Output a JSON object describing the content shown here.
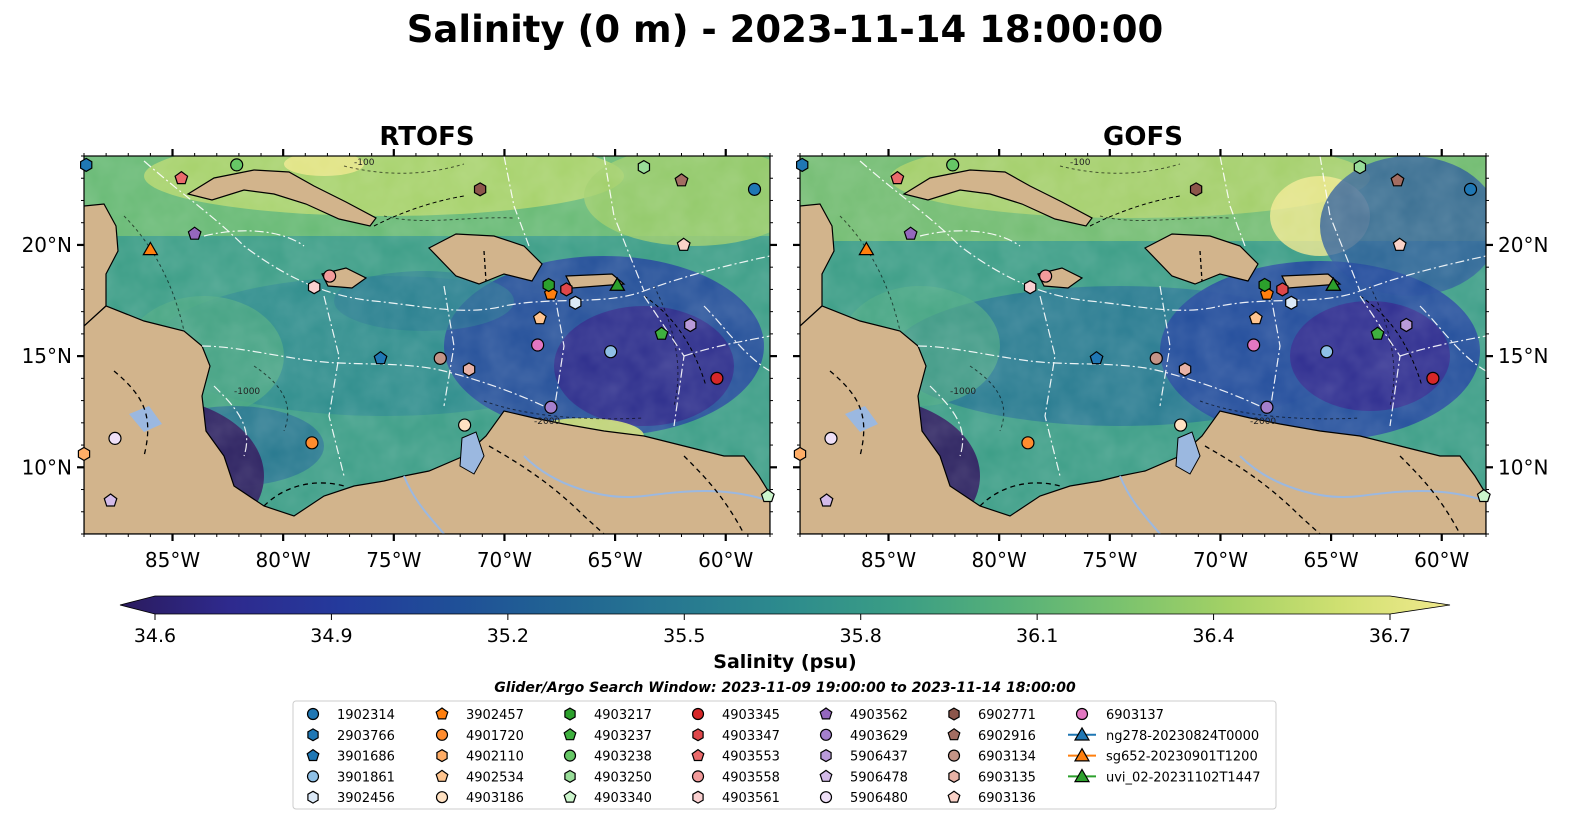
{
  "title": "Salinity (0 m) - 2023-11-14 18:00:00",
  "panels": [
    {
      "title": "RTOFS"
    },
    {
      "title": "GOFS"
    }
  ],
  "map": {
    "lon_min": -89,
    "lon_max": -58,
    "lat_min": 7,
    "lat_max": 24,
    "lon_ticks": [
      -85,
      -80,
      -75,
      -70,
      -65,
      -60
    ],
    "lon_tick_labels": [
      "85°W",
      "80°W",
      "75°W",
      "70°W",
      "65°W",
      "60°W"
    ],
    "lat_ticks": [
      10,
      15,
      20
    ],
    "lat_tick_labels": [
      "10°N",
      "15°N",
      "20°N"
    ],
    "contour_labels": [
      "-100",
      "-1000",
      "-2000"
    ],
    "land_color": "#d2b48c",
    "water_body_color": "#9bb8e0"
  },
  "colorbar": {
    "min": 34.6,
    "max": 36.7,
    "ticks": [
      34.6,
      34.9,
      35.2,
      35.5,
      35.8,
      36.1,
      36.4,
      36.7
    ],
    "tick_labels": [
      "34.6",
      "34.9",
      "35.2",
      "35.5",
      "35.8",
      "36.1",
      "36.4",
      "36.7"
    ],
    "label": "Salinity (psu)",
    "colormap": [
      "#2b1b5e",
      "#2e2a8e",
      "#243a9c",
      "#1f4f98",
      "#216493",
      "#277891",
      "#2d8b8d",
      "#3a9d85",
      "#55b079",
      "#79c26e",
      "#a3d165",
      "#cfe071",
      "#f1e98d"
    ]
  },
  "search_window": "Glider/Argo Search Window: 2023-11-09 19:00:00 to 2023-11-14 18:00:00",
  "legend": [
    {
      "label": "1902314",
      "marker": "circle",
      "color": "#1f77b4"
    },
    {
      "label": "2903766",
      "marker": "hexagon",
      "color": "#1f77b4"
    },
    {
      "label": "3901686",
      "marker": "pentagon",
      "color": "#1f77b4"
    },
    {
      "label": "3901861",
      "marker": "circle",
      "color": "#8fc0e6"
    },
    {
      "label": "3902456",
      "marker": "hexagon",
      "color": "#dbe9f7"
    },
    {
      "label": "3902457",
      "marker": "pentagon",
      "color": "#ff7f0e"
    },
    {
      "label": "4901720",
      "marker": "circle",
      "color": "#ff8c2e"
    },
    {
      "label": "4902110",
      "marker": "hexagon",
      "color": "#ffad66"
    },
    {
      "label": "4902534",
      "marker": "pentagon",
      "color": "#ffc58f"
    },
    {
      "label": "4903186",
      "marker": "circle",
      "color": "#ffe1c2"
    },
    {
      "label": "4903217",
      "marker": "hexagon",
      "color": "#2ca02c"
    },
    {
      "label": "4903237",
      "marker": "pentagon",
      "color": "#3fb03f"
    },
    {
      "label": "4903238",
      "marker": "circle",
      "color": "#66c766"
    },
    {
      "label": "4903250",
      "marker": "hexagon",
      "color": "#99dd99"
    },
    {
      "label": "4903340",
      "marker": "pentagon",
      "color": "#ccf5cc"
    },
    {
      "label": "4903345",
      "marker": "circle",
      "color": "#d62728"
    },
    {
      "label": "4903347",
      "marker": "hexagon",
      "color": "#e0474a"
    },
    {
      "label": "4903553",
      "marker": "pentagon",
      "color": "#ea6a6b"
    },
    {
      "label": "4903558",
      "marker": "circle",
      "color": "#f29b9b"
    },
    {
      "label": "4903561",
      "marker": "hexagon",
      "color": "#fad0d0"
    },
    {
      "label": "4903562",
      "marker": "pentagon",
      "color": "#9467bd"
    },
    {
      "label": "4903629",
      "marker": "circle",
      "color": "#a47fcc"
    },
    {
      "label": "5906437",
      "marker": "hexagon",
      "color": "#b99ad9"
    },
    {
      "label": "5906478",
      "marker": "pentagon",
      "color": "#d3bbe8"
    },
    {
      "label": "5906480",
      "marker": "circle",
      "color": "#efe0f8"
    },
    {
      "label": "6902771",
      "marker": "hexagon",
      "color": "#8c564b"
    },
    {
      "label": "6902916",
      "marker": "pentagon",
      "color": "#a36d62"
    },
    {
      "label": "6903134",
      "marker": "circle",
      "color": "#c49487"
    },
    {
      "label": "6903135",
      "marker": "hexagon",
      "color": "#e8b2a6"
    },
    {
      "label": "6903136",
      "marker": "pentagon",
      "color": "#fad2c8"
    },
    {
      "label": "6903137",
      "marker": "circle",
      "color": "#e377c2"
    },
    {
      "label": "ng278-20230824T0000",
      "marker": "triangle-line",
      "color": "#1f77b4"
    },
    {
      "label": "sg652-20230901T1200",
      "marker": "triangle-line",
      "color": "#ff7f0e"
    },
    {
      "label": "uvi_02-20231102T1447",
      "marker": "triangle-line",
      "color": "#2ca02c"
    }
  ],
  "observations": [
    {
      "id": "1902314",
      "lon": -58.7,
      "lat": 22.5
    },
    {
      "id": "2903766",
      "lon": -88.9,
      "lat": 23.6
    },
    {
      "id": "3901686",
      "lon": -75.6,
      "lat": 14.9
    },
    {
      "id": "3901861",
      "lon": -65.2,
      "lat": 15.2
    },
    {
      "id": "3902456",
      "lon": -66.8,
      "lat": 17.4
    },
    {
      "id": "3902457",
      "lon": -67.9,
      "lat": 17.8
    },
    {
      "id": "4901720",
      "lon": -78.7,
      "lat": 11.1
    },
    {
      "id": "4902110",
      "lon": -89.0,
      "lat": 10.6
    },
    {
      "id": "4902534",
      "lon": -68.4,
      "lat": 16.7
    },
    {
      "id": "4903186",
      "lon": -71.8,
      "lat": 11.9
    },
    {
      "id": "4903217",
      "lon": -68.0,
      "lat": 18.2
    },
    {
      "id": "4903237",
      "lon": -62.9,
      "lat": 16.0
    },
    {
      "id": "4903238",
      "lon": -82.1,
      "lat": 23.6
    },
    {
      "id": "4903250",
      "lon": -63.7,
      "lat": 23.5
    },
    {
      "id": "4903340",
      "lon": -58.1,
      "lat": 8.7
    },
    {
      "id": "4903345",
      "lon": -60.4,
      "lat": 14.0
    },
    {
      "id": "4903347",
      "lon": -67.2,
      "lat": 18.0
    },
    {
      "id": "4903553",
      "lon": -84.6,
      "lat": 23.0
    },
    {
      "id": "4903558",
      "lon": -77.9,
      "lat": 18.6
    },
    {
      "id": "4903561",
      "lon": -78.6,
      "lat": 18.1
    },
    {
      "id": "4903562",
      "lon": -84.0,
      "lat": 20.5
    },
    {
      "id": "4903629",
      "lon": -67.9,
      "lat": 12.7
    },
    {
      "id": "5906437",
      "lon": -61.6,
      "lat": 16.4
    },
    {
      "id": "5906478",
      "lon": -87.8,
      "lat": 8.5
    },
    {
      "id": "5906480",
      "lon": -87.6,
      "lat": 11.3
    },
    {
      "id": "6902771",
      "lon": -71.1,
      "lat": 22.5
    },
    {
      "id": "6902916",
      "lon": -62.0,
      "lat": 22.9
    },
    {
      "id": "6903134",
      "lon": -72.9,
      "lat": 14.9
    },
    {
      "id": "6903135",
      "lon": -71.6,
      "lat": 14.4
    },
    {
      "id": "6903136",
      "lon": -61.9,
      "lat": 20.0
    },
    {
      "id": "6903137",
      "lon": -68.5,
      "lat": 15.5
    },
    {
      "id": "ng278-20230824T0000",
      "lon": -64.9,
      "lat": 18.2
    },
    {
      "id": "sg652-20230901T1200",
      "lon": -86.0,
      "lat": 19.8
    },
    {
      "id": "uvi_02-20231102T1447",
      "lon": -64.9,
      "lat": 18.2
    }
  ]
}
